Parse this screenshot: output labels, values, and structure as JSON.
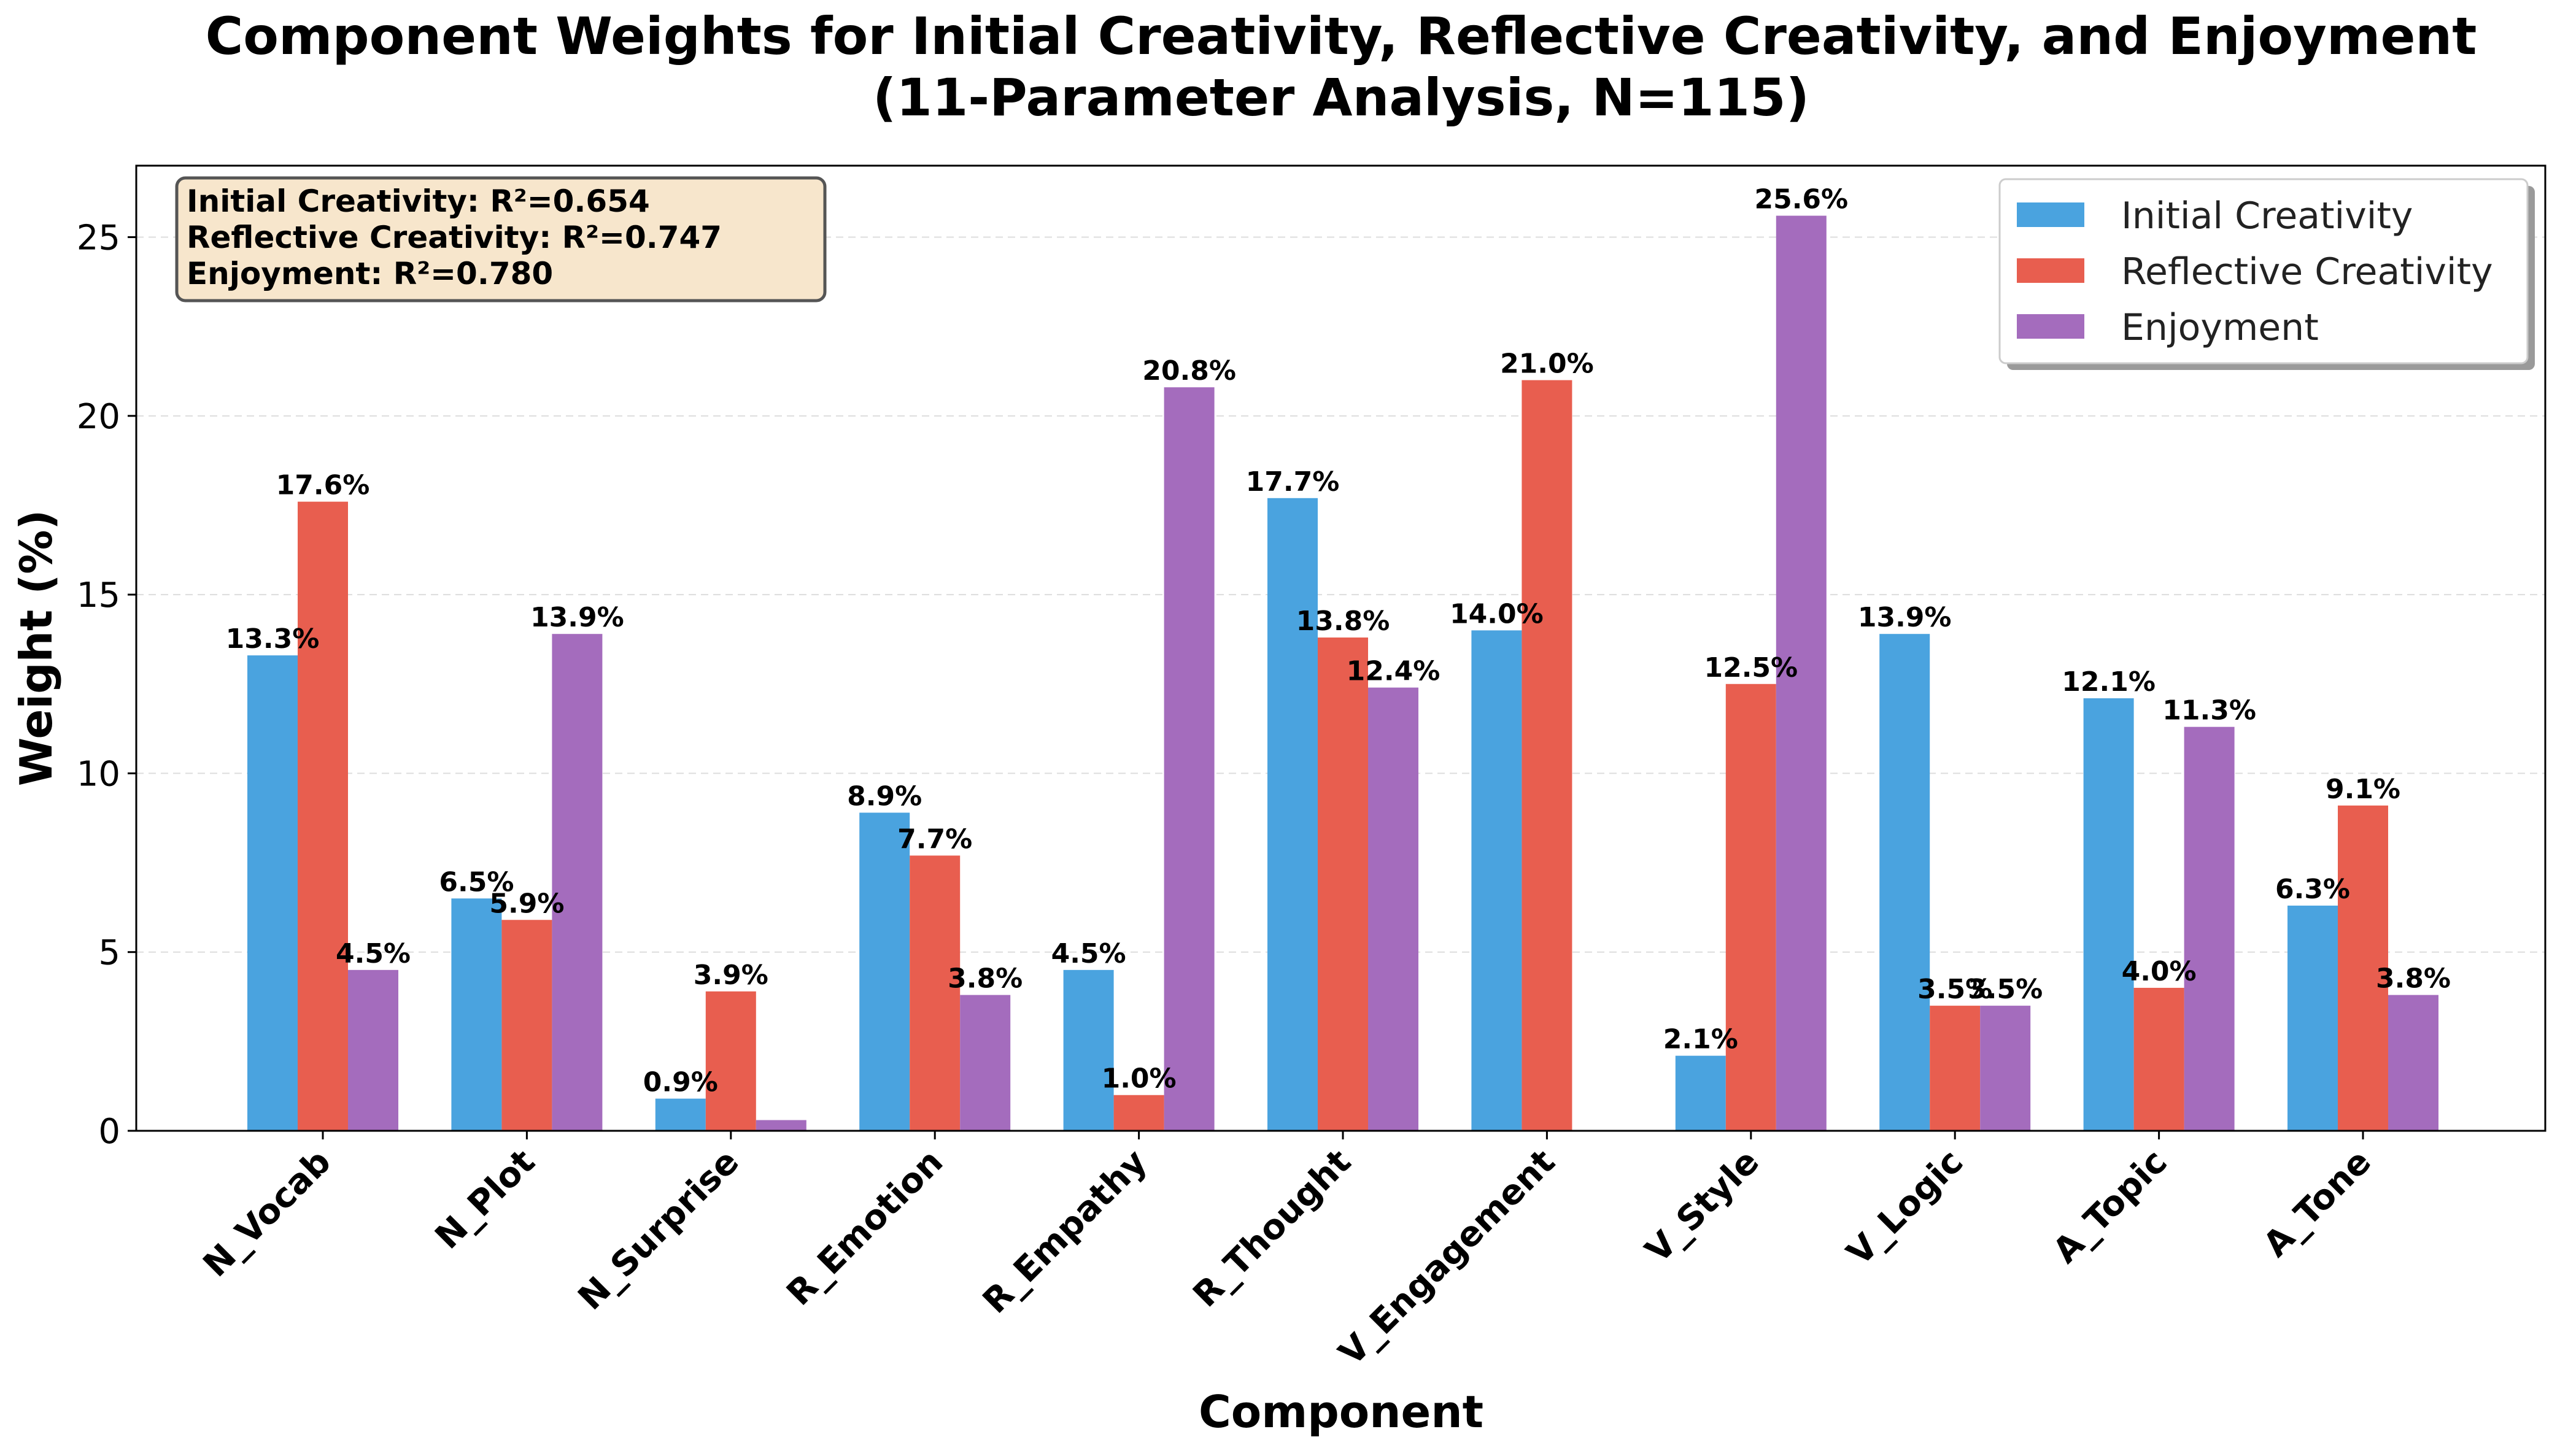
{
  "chart_data": {
    "type": "bar",
    "title": "Component Weights for Initial Creativity, Reflective Creativity, and Enjoyment",
    "subtitle": "(11-Parameter Analysis, N=115)",
    "xlabel": "Component",
    "ylabel": "Weight (%)",
    "ylim": [
      0,
      27
    ],
    "yticks": [
      "0",
      "5",
      "10",
      "15",
      "20",
      "25"
    ],
    "grid": "horizontal dashed",
    "legend_position": "top-right",
    "categories": [
      "N_Vocab",
      "N_Plot",
      "N_Surprise",
      "R_Emotion",
      "R_Empathy",
      "R_Thought",
      "V_Engagement",
      "V_Style",
      "V_Logic",
      "A_Topic",
      "A_Tone"
    ],
    "series": [
      {
        "name": "Initial Creativity",
        "color": "#4aa3df",
        "values": [
          13.3,
          6.5,
          0.9,
          8.9,
          4.5,
          17.7,
          14.0,
          2.1,
          13.9,
          12.1,
          6.3
        ],
        "labels": [
          "13.3%",
          "6.5%",
          "0.9%",
          "8.9%",
          "4.5%",
          "17.7%",
          "14.0%",
          "2.1%",
          "13.9%",
          "12.1%",
          "6.3%"
        ]
      },
      {
        "name": "Reflective Creativity",
        "color": "#e85e4f",
        "values": [
          17.6,
          5.9,
          3.9,
          7.7,
          1.0,
          13.8,
          21.0,
          12.5,
          3.5,
          4.0,
          9.1
        ],
        "labels": [
          "17.6%",
          "5.9%",
          "3.9%",
          "7.7%",
          "1.0%",
          "13.8%",
          "21.0%",
          "12.5%",
          "3.5%",
          "4.0%",
          "9.1%"
        ]
      },
      {
        "name": "Enjoyment",
        "color": "#a46cbd",
        "values": [
          4.5,
          13.9,
          0.3,
          3.8,
          20.8,
          12.4,
          0.0,
          25.6,
          3.5,
          11.3,
          3.8
        ],
        "labels": [
          "4.5%",
          "13.9%",
          "",
          "3.8%",
          "20.8%",
          "12.4%",
          "",
          "25.6%",
          "3.5%",
          "11.3%",
          "3.8%"
        ]
      }
    ],
    "stats_box": [
      "Initial Creativity: R²=0.654",
      "Reflective Creativity: R²=0.747",
      "Enjoyment: R²=0.780"
    ]
  }
}
